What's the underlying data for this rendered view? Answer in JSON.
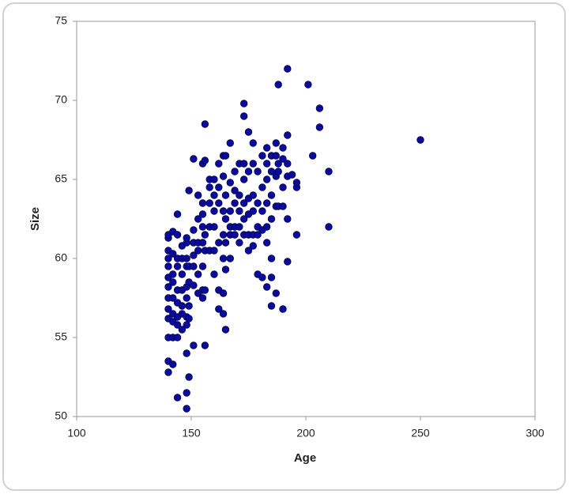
{
  "chart_data": {
    "type": "scatter",
    "x_label": "Age",
    "y_label": "Size",
    "color": "#0a0a9c",
    "xlim": [
      100,
      300
    ],
    "ylim": [
      50,
      75
    ],
    "xticks": [
      100,
      150,
      200,
      250,
      300
    ],
    "yticks": [
      50,
      55,
      60,
      65,
      70,
      75
    ],
    "grid": false,
    "series": [
      {
        "x": [
          140,
          140,
          140,
          140,
          140,
          140,
          140,
          140,
          140,
          140,
          140,
          140,
          140,
          142,
          142,
          142,
          142,
          142,
          142,
          142,
          142,
          142,
          144,
          144,
          144,
          144,
          144,
          144,
          144,
          144,
          144,
          144,
          146,
          146,
          146,
          146,
          146,
          146,
          146,
          148,
          148,
          148,
          148,
          148,
          148,
          148,
          148,
          148,
          148,
          148,
          149,
          149,
          149,
          149,
          149,
          149,
          151,
          151,
          151,
          151,
          151,
          151,
          151,
          153,
          153,
          153,
          153,
          153,
          153,
          155,
          155,
          155,
          155,
          155,
          155,
          155,
          155,
          156,
          156,
          156,
          156,
          156,
          156,
          158,
          158,
          158,
          158,
          158,
          160,
          160,
          160,
          160,
          160,
          160,
          162,
          162,
          162,
          162,
          162,
          162,
          164,
          164,
          164,
          164,
          164,
          164,
          164,
          165,
          165,
          165,
          165,
          165,
          165,
          167,
          167,
          167,
          167,
          167,
          167,
          169,
          169,
          169,
          169,
          169,
          171,
          171,
          171,
          171,
          171,
          173,
          173,
          173,
          173,
          173,
          173,
          173,
          175,
          175,
          175,
          175,
          175,
          175,
          177,
          177,
          177,
          177,
          177,
          177,
          179,
          179,
          179,
          179,
          179,
          181,
          181,
          181,
          181,
          181,
          183,
          183,
          183,
          183,
          183,
          183,
          183,
          185,
          185,
          185,
          185,
          185,
          185,
          185,
          187,
          187,
          187,
          187,
          187,
          188,
          188,
          188,
          188,
          190,
          190,
          190,
          190,
          190,
          192,
          192,
          192,
          192,
          192,
          192,
          194,
          196,
          196,
          196,
          201,
          203,
          206,
          206,
          210,
          210,
          250
        ],
        "values": [
          52.8,
          53.5,
          55,
          56.2,
          56.8,
          57.5,
          58.2,
          58.8,
          59.5,
          60,
          60.5,
          61.3,
          61.5,
          53.3,
          55,
          56,
          56.5,
          57.5,
          58.5,
          59,
          60.3,
          61.7,
          51.2,
          55,
          55.8,
          56.3,
          57.2,
          58,
          59.5,
          60,
          61.5,
          62.8,
          55.5,
          56.5,
          57,
          58,
          59,
          60,
          60.8,
          50.5,
          51.5,
          54,
          55.8,
          56.3,
          57.5,
          58.2,
          59.5,
          60,
          61,
          61.3,
          52.5,
          56.2,
          57,
          58.5,
          59.5,
          64.3,
          54.5,
          58.3,
          59.5,
          60.2,
          61,
          61.8,
          66.3,
          57.8,
          59,
          60.5,
          61,
          62.5,
          64,
          57.5,
          58,
          59.5,
          61,
          62,
          62.8,
          63.5,
          66,
          54.5,
          58,
          60.5,
          61.5,
          66.2,
          68.5,
          60.5,
          62,
          63.5,
          64.5,
          65,
          59,
          60.5,
          62,
          63,
          64,
          65,
          56.8,
          58,
          61,
          63.5,
          64.5,
          66,
          56.5,
          57.8,
          60,
          61.5,
          63,
          65.2,
          66.5,
          55.5,
          59.3,
          61,
          62.5,
          64,
          66.5,
          60,
          61.5,
          62,
          63,
          64.8,
          67.3,
          61.5,
          62,
          63.5,
          64.3,
          65.5,
          61,
          62,
          63,
          64,
          66,
          61.5,
          62.5,
          63.5,
          65,
          66,
          69,
          69.8,
          60.5,
          61.5,
          62.8,
          63.8,
          65.5,
          68,
          60.8,
          61.5,
          63,
          64,
          66,
          67.3,
          59,
          61.5,
          62,
          63.5,
          65.5,
          58.8,
          61.8,
          63,
          64.5,
          66.5,
          58.2,
          61,
          62,
          63.5,
          65,
          66,
          67,
          57,
          58.8,
          60,
          62.5,
          64,
          65.5,
          66.5,
          57.8,
          63.3,
          65.2,
          66.5,
          67.3,
          63.3,
          65.5,
          66,
          71,
          56.8,
          63.3,
          64.5,
          67,
          66.3,
          59.8,
          62.5,
          65.2,
          66,
          67.8,
          72,
          65.3,
          61.5,
          64.5,
          64.8,
          71,
          66.5,
          68.3,
          69.5,
          62,
          65.5,
          67.5
        ]
      }
    ]
  }
}
